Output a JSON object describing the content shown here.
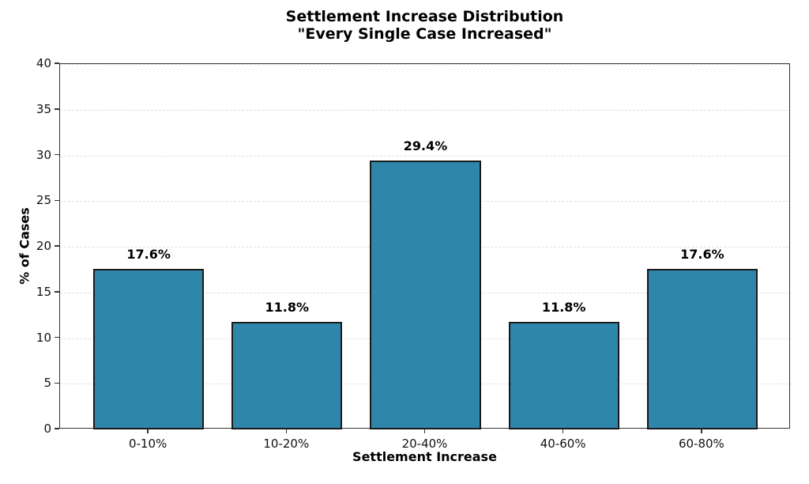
{
  "chart_data": {
    "type": "bar",
    "title": "Settlement Increase Distribution",
    "subtitle": "\"Every Single Case Increased\"",
    "xlabel": "Settlement Increase",
    "ylabel": "% of Cases",
    "categories": [
      "0-10%",
      "10-20%",
      "20-40%",
      "40-60%",
      "60-80%"
    ],
    "values": [
      17.6,
      11.8,
      29.4,
      11.8,
      17.6
    ],
    "value_labels": [
      "17.6%",
      "11.8%",
      "29.4%",
      "11.8%",
      "17.6%"
    ],
    "ylim": [
      0,
      40
    ],
    "yticks": [
      0,
      5,
      10,
      15,
      20,
      25,
      30,
      35,
      40
    ],
    "grid": "horizontal-dashed",
    "legend": "none",
    "colors": {
      "bar_fill": "#2E86AB",
      "bar_edge": "#1a1a1a",
      "grid": "#e0e0e0",
      "spine": "#333333",
      "text": "#000000"
    }
  }
}
